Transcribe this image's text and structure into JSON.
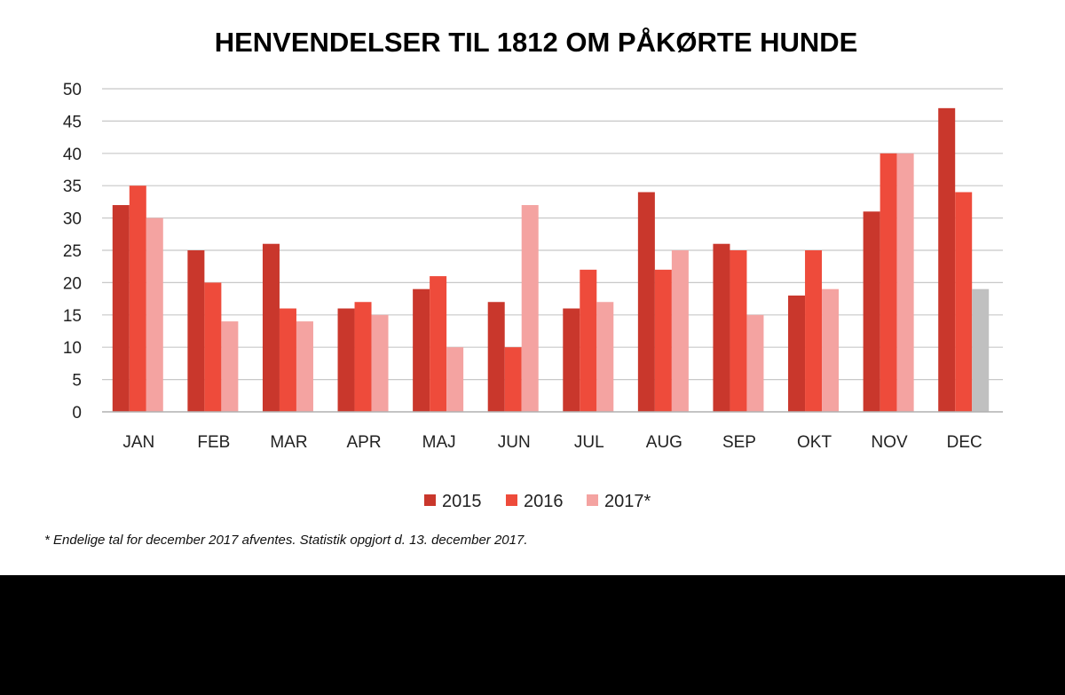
{
  "chart_data": {
    "type": "bar",
    "title": "HENVENDELSER TIL 1812 OM PÅKØRTE HUNDE",
    "xlabel": "",
    "ylabel": "",
    "ylim": [
      0,
      50
    ],
    "yticks": [
      0,
      5,
      10,
      15,
      20,
      25,
      30,
      35,
      40,
      45,
      50
    ],
    "grid": true,
    "legend_position": "bottom",
    "categories": [
      "JAN",
      "FEB",
      "MAR",
      "APR",
      "MAJ",
      "JUN",
      "JUL",
      "AUG",
      "SEP",
      "OKT",
      "NOV",
      "DEC"
    ],
    "series": [
      {
        "name": "2015",
        "color": "#c9372c",
        "values": [
          32,
          25,
          26,
          16,
          19,
          17,
          16,
          34,
          26,
          18,
          31,
          47
        ]
      },
      {
        "name": "2016",
        "color": "#ee4b3b",
        "values": [
          35,
          20,
          16,
          17,
          21,
          10,
          22,
          22,
          25,
          25,
          40,
          34
        ]
      },
      {
        "name": "2017*",
        "color": "#f4a3a1",
        "values": [
          30,
          14,
          14,
          15,
          10,
          32,
          17,
          25,
          15,
          19,
          40,
          19
        ]
      }
    ],
    "highlight": {
      "series_index": 2,
      "category_index": 11,
      "color": "#c0c0c0"
    },
    "footnote": "* Endelige tal for december 2017 afventes. Statistik opgjort d. 13. december 2017."
  }
}
